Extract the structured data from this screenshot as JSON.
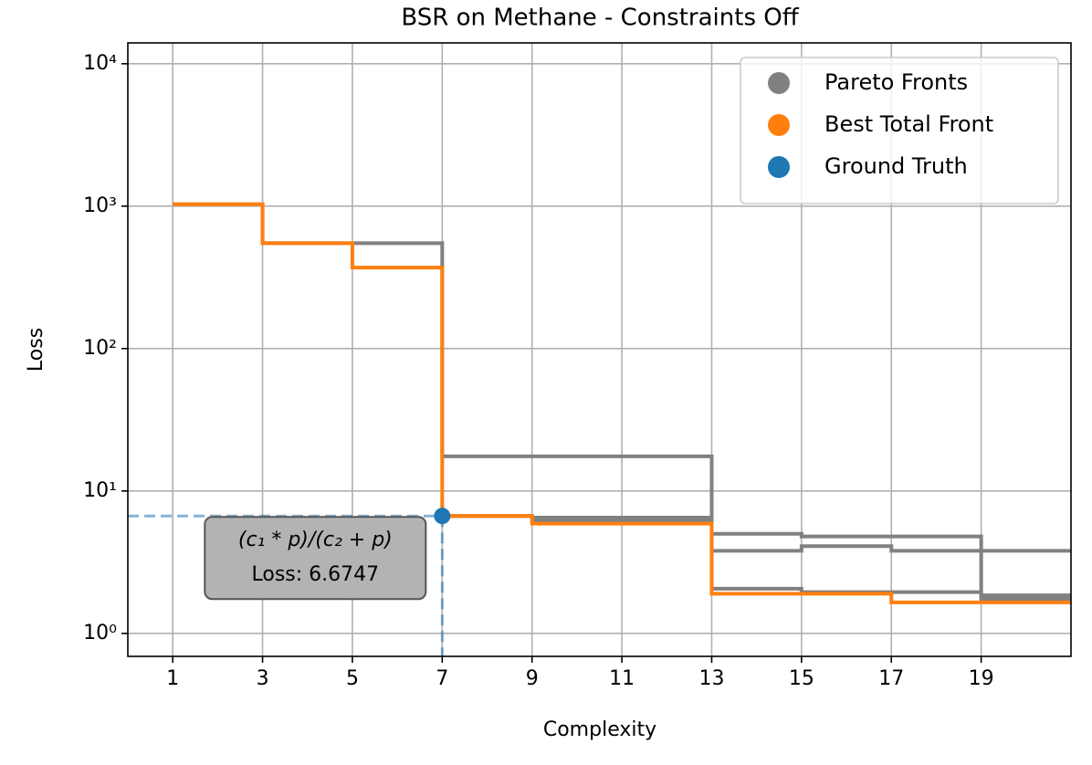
{
  "chart_data": {
    "type": "line",
    "step": "post",
    "log_y": true,
    "grid": true,
    "legend": "upper right",
    "title": "BSR on Methane - Constraints Off",
    "x_label": "Complexity",
    "y_label": "Loss",
    "xlim": [
      0,
      21
    ],
    "ylim": [
      0.69,
      14000
    ],
    "xticks": [
      1,
      3,
      5,
      7,
      9,
      11,
      13,
      15,
      17,
      19
    ],
    "yticks": [
      {
        "value": 1,
        "label": "10⁰"
      },
      {
        "value": 10,
        "label": "10¹"
      },
      {
        "value": 100,
        "label": "10²"
      },
      {
        "value": 1000,
        "label": "10³"
      },
      {
        "value": 10000,
        "label": "10⁴"
      }
    ],
    "series": [
      {
        "name": "Pareto Fronts",
        "color": "#808080",
        "x": [
          1,
          3,
          5,
          7,
          13,
          15,
          19,
          21
        ],
        "values": [
          1030,
          550,
          550,
          17.5,
          5.0,
          4.8,
          1.85,
          1.85
        ]
      },
      {
        "color": "#808080",
        "x": [
          7,
          9,
          13,
          15,
          17,
          19,
          21
        ],
        "values": [
          6.67,
          6.5,
          3.8,
          4.1,
          3.8,
          3.8,
          3.8
        ]
      },
      {
        "color": "#808080",
        "x": [
          7,
          9,
          13,
          15,
          17,
          19,
          21
        ],
        "values": [
          6.67,
          6.2,
          2.06,
          1.95,
          1.95,
          1.75,
          1.75
        ]
      },
      {
        "name": "Best Total Front",
        "color": "#ff7f0e",
        "x": [
          1,
          3,
          5,
          7,
          9,
          13,
          17,
          21
        ],
        "values": [
          1030,
          550,
          370,
          6.6747,
          5.9,
          1.9,
          1.65,
          1.65
        ]
      },
      {
        "name": "Ground Truth",
        "color": "#1f77b4",
        "marker": true,
        "x": [
          7
        ],
        "values": [
          6.6747
        ]
      }
    ],
    "annotation": {
      "expression": "(c₁ * p)/(c₂ + p)",
      "text": "Loss: 6.6747"
    }
  }
}
